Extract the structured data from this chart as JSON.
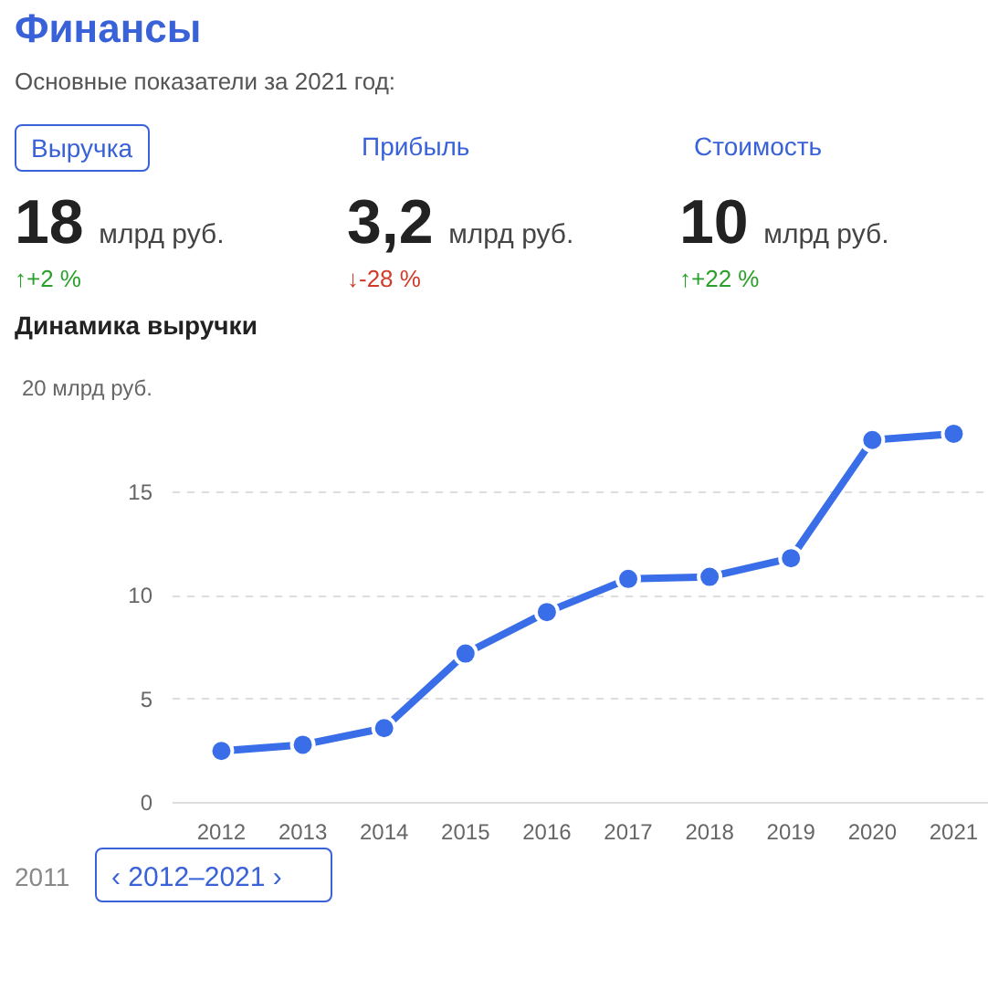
{
  "chart_data": {
    "type": "line",
    "title": "Финансы",
    "subtitle": "Основные показатели за 2021 год:",
    "annotations": [
      "Выручка",
      "18",
      "млрд руб.",
      "↑+2 %",
      "Прибыль",
      "3,2",
      "млрд руб.",
      "↓-28 %",
      "Стоимость",
      "10",
      "млрд руб.",
      "↑+22 %",
      "Динамика выручки",
      "2011",
      "‹ 2012–2021 ›"
    ],
    "categories": [
      "2012",
      "2013",
      "2014",
      "2015",
      "2016",
      "2017",
      "2018",
      "2019",
      "2020",
      "2021"
    ],
    "series": [
      {
        "color": "#3a6ee8",
        "values": [
          2.5,
          2.8,
          3.6,
          7.2,
          9.2,
          10.8,
          10.9,
          11.8,
          17.5,
          17.8
        ]
      }
    ],
    "ylim": [
      0,
      20
    ],
    "yticks": [
      0,
      5,
      10,
      15,
      {
        "value": 20,
        "label": "20 млрд руб."
      }
    ],
    "grid": "y",
    "marker": "circle",
    "line_style": "solid"
  }
}
